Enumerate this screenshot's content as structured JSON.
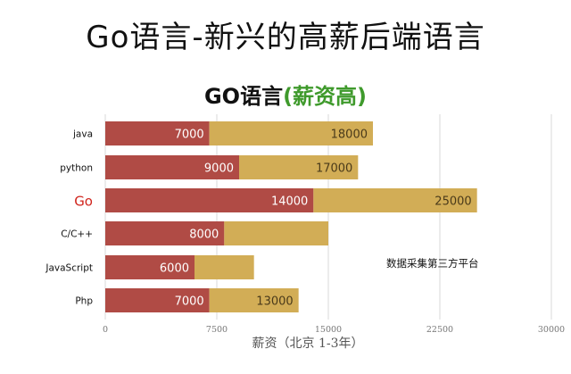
{
  "slide": {
    "title": "Go语言-新兴的高薪后端语言"
  },
  "chart_data": {
    "type": "bar",
    "orientation": "horizontal",
    "stacked": true,
    "title_main": "GO语言",
    "title_paren": "(薪资高)",
    "xlabel": "薪资（北京 1-3年）",
    "ylabel": "",
    "xlim": [
      0,
      30000
    ],
    "xticks": [
      "0",
      "7500",
      "15000",
      "22500",
      "30000"
    ],
    "xtick_values": [
      0,
      7500,
      15000,
      22500,
      30000
    ],
    "grid": true,
    "categories": [
      "java",
      "python",
      "Go",
      "C/C++",
      "JavaScript",
      "Php"
    ],
    "highlight_category": "Go",
    "highlight_color": "#d0241c",
    "series": [
      {
        "color": "#b04b45",
        "values": [
          7000,
          9000,
          14000,
          8000,
          6000,
          7000
        ]
      },
      {
        "color": "#d2ad56",
        "values": [
          11000,
          8000,
          11000,
          7000,
          4000,
          6000
        ]
      }
    ],
    "data_labels": [
      [
        "7000",
        "18000"
      ],
      [
        "9000",
        "17000"
      ],
      [
        "14000",
        "25000"
      ],
      [
        "8000",
        ""
      ],
      [
        "6000",
        ""
      ],
      [
        "7000",
        "13000"
      ]
    ],
    "annotation": "数据采集第三方平台"
  }
}
